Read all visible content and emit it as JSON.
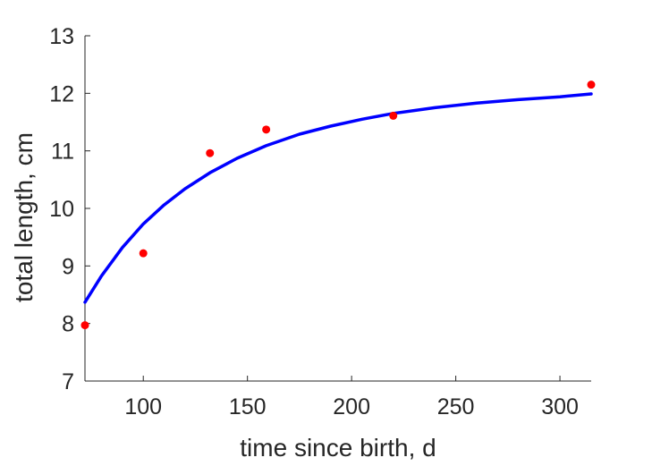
{
  "chart_data": {
    "type": "scatter",
    "title": "",
    "xlabel": "time since birth, d",
    "ylabel": "total length, cm",
    "xlim": [
      72,
      315
    ],
    "ylim": [
      7,
      13
    ],
    "xticks": [
      100,
      150,
      200,
      250,
      300
    ],
    "yticks": [
      7,
      8,
      9,
      10,
      11,
      12,
      13
    ],
    "grid": false,
    "box": false,
    "series": [
      {
        "kind": "points",
        "color": "#ff0000",
        "x": [
          72,
          100,
          132,
          159,
          220,
          315
        ],
        "y": [
          7.97,
          9.22,
          10.96,
          11.37,
          11.61,
          12.15
        ]
      },
      {
        "kind": "line",
        "color": "#0000ff",
        "x": [
          72,
          80,
          90,
          100,
          110,
          120,
          132,
          145,
          159,
          175,
          190,
          205,
          220,
          240,
          260,
          280,
          300,
          315
        ],
        "y": [
          8.37,
          8.83,
          9.32,
          9.73,
          10.06,
          10.34,
          10.62,
          10.87,
          11.09,
          11.29,
          11.43,
          11.55,
          11.65,
          11.75,
          11.83,
          11.89,
          11.94,
          11.99
        ]
      }
    ]
  }
}
